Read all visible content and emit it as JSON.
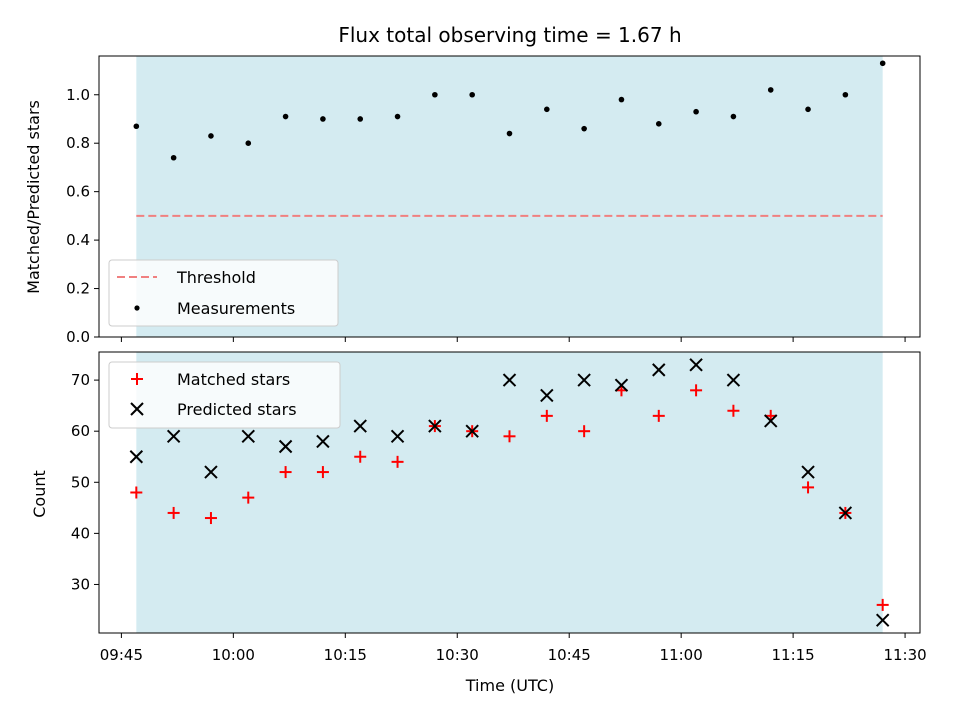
{
  "chart_data": [
    {
      "type": "scatter",
      "title": "Flux total observing time = 1.67 h",
      "ylabel": "Matched/Predicted stars",
      "xlabel": "",
      "xlim": [
        "09:42",
        "11:32"
      ],
      "ylim": [
        0,
        1.16
      ],
      "y_ticks": [
        0.0,
        0.2,
        0.4,
        0.6,
        0.8,
        1.0
      ],
      "y_tick_labels": [
        "0.0",
        "0.2",
        "0.4",
        "0.6",
        "0.8",
        "1.0"
      ],
      "shaded_span": [
        "09:47",
        "11:27"
      ],
      "threshold": {
        "name": "Threshold",
        "value": 0.5,
        "x_range": [
          "09:47",
          "11:27"
        ],
        "color": "#f08080"
      },
      "series": [
        {
          "name": "Measurements",
          "color": "#000000",
          "marker": "dot",
          "x": [
            "09:47",
            "09:52",
            "09:57",
            "10:02",
            "10:07",
            "10:12",
            "10:17",
            "10:22",
            "10:27",
            "10:32",
            "10:37",
            "10:42",
            "10:47",
            "10:52",
            "10:57",
            "11:02",
            "11:07",
            "11:12",
            "11:17",
            "11:22",
            "11:27"
          ],
          "y": [
            0.87,
            0.74,
            0.83,
            0.8,
            0.91,
            0.9,
            0.9,
            0.91,
            1.0,
            1.0,
            0.84,
            0.94,
            0.86,
            0.98,
            0.88,
            0.93,
            0.91,
            1.02,
            0.94,
            1.0,
            1.13
          ]
        }
      ],
      "legend": [
        "Threshold",
        "Measurements"
      ],
      "legend_position": "lower-left"
    },
    {
      "type": "scatter",
      "title": "",
      "ylabel": "Count",
      "xlabel": "Time (UTC)",
      "xlim": [
        "09:42",
        "11:32"
      ],
      "ylim": [
        20.5,
        75.5
      ],
      "y_ticks": [
        30,
        40,
        50,
        60,
        70
      ],
      "y_tick_labels": [
        "30",
        "40",
        "50",
        "60",
        "70"
      ],
      "x_ticks": [
        "09:45",
        "10:00",
        "10:15",
        "10:30",
        "10:45",
        "11:00",
        "11:15",
        "11:30"
      ],
      "shaded_span": [
        "09:47",
        "11:27"
      ],
      "series": [
        {
          "name": "Matched stars",
          "color": "#ff0000",
          "marker": "plus",
          "x": [
            "09:47",
            "09:52",
            "09:57",
            "10:02",
            "10:07",
            "10:12",
            "10:17",
            "10:22",
            "10:27",
            "10:32",
            "10:37",
            "10:42",
            "10:47",
            "10:52",
            "10:57",
            "11:02",
            "11:07",
            "11:12",
            "11:17",
            "11:22",
            "11:27"
          ],
          "y": [
            48,
            44,
            43,
            47,
            52,
            52,
            55,
            54,
            61,
            60,
            59,
            63,
            60,
            68,
            63,
            68,
            64,
            63,
            49,
            44,
            26
          ]
        },
        {
          "name": "Predicted stars",
          "color": "#000000",
          "marker": "x",
          "x": [
            "09:47",
            "09:52",
            "09:57",
            "10:02",
            "10:07",
            "10:12",
            "10:17",
            "10:22",
            "10:27",
            "10:32",
            "10:37",
            "10:42",
            "10:47",
            "10:52",
            "10:57",
            "11:02",
            "11:07",
            "11:12",
            "11:17",
            "11:22",
            "11:27"
          ],
          "y": [
            55,
            59,
            52,
            59,
            57,
            58,
            61,
            59,
            61,
            60,
            70,
            67,
            70,
            69,
            72,
            73,
            70,
            62,
            52,
            44,
            23
          ]
        }
      ],
      "legend": [
        "Matched stars",
        "Predicted stars"
      ],
      "legend_position": "top-left"
    }
  ]
}
